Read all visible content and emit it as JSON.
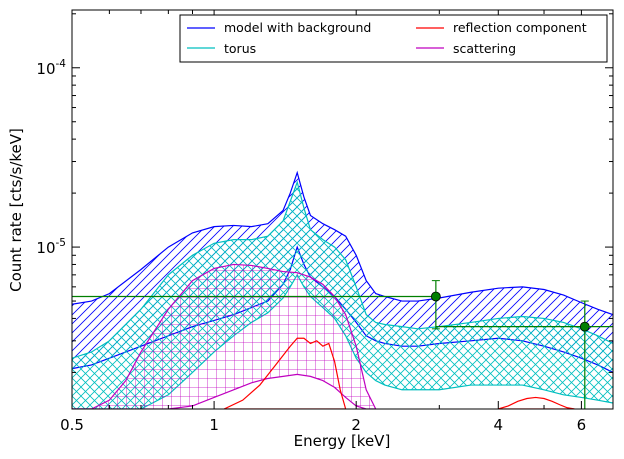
{
  "chart_data": {
    "type": "line",
    "title": "",
    "xlabel": "Energy [keV]",
    "ylabel": "Count rate [cts/s/keV]",
    "xscale": "log",
    "yscale": "log",
    "xlim": [
      0.5,
      7.0
    ],
    "ylim": [
      1.25e-06,
      0.00021
    ],
    "grid": false,
    "legend": {
      "placement": "top-right",
      "columns": 2,
      "entries": [
        {
          "label": "model with background",
          "color": "#0000ff"
        },
        {
          "label": "reflection component",
          "color": "#ff0000"
        },
        {
          "label": "torus",
          "color": "#00bfbf"
        },
        {
          "label": "scattering",
          "color": "#bf00bf"
        }
      ]
    },
    "x_ticks": [
      {
        "value": 0.5,
        "label": "0.5"
      },
      {
        "value": 1,
        "label": "1"
      },
      {
        "value": 2,
        "label": "2"
      },
      {
        "value": 4,
        "label": "4"
      },
      {
        "value": 6,
        "label": "6"
      }
    ],
    "y_ticks": [
      {
        "value": 1e-05,
        "base": "10",
        "exp": "-5"
      },
      {
        "value": 0.0001,
        "base": "10",
        "exp": "-4"
      }
    ],
    "bands": [
      {
        "name": "model with background",
        "color": "#0000ff",
        "hatch": "diagonal",
        "x": [
          0.5,
          0.55,
          0.6,
          0.7,
          0.8,
          0.9,
          1.0,
          1.1,
          1.2,
          1.3,
          1.4,
          1.45,
          1.5,
          1.55,
          1.6,
          1.7,
          1.8,
          1.9,
          2.0,
          2.1,
          2.2,
          2.3,
          2.5,
          2.7,
          3.0,
          3.5,
          4.0,
          4.5,
          5.0,
          5.5,
          6.0,
          6.5,
          7.0
        ],
        "upper": [
          4.8e-06,
          5e-06,
          5.5e-06,
          7.5e-06,
          1e-05,
          1.2e-05,
          1.3e-05,
          1.32e-05,
          1.3e-05,
          1.35e-05,
          1.6e-05,
          2e-05,
          2.6e-05,
          1.9e-05,
          1.5e-05,
          1.35e-05,
          1.25e-05,
          1.15e-05,
          9e-06,
          6.5e-06,
          5.5e-06,
          5.3e-06,
          5e-06,
          5e-06,
          5.2e-06,
          5.6e-06,
          5.9e-06,
          6e-06,
          5.8e-06,
          5.4e-06,
          4.9e-06,
          4.5e-06,
          4.2e-06
        ],
        "lower": [
          2.1e-06,
          2.2e-06,
          2.4e-06,
          2.8e-06,
          3.2e-06,
          3.6e-06,
          3.9e-06,
          4.2e-06,
          4.6e-06,
          5e-06,
          6.2e-06,
          7.5e-06,
          1e-05,
          8e-06,
          6.8e-06,
          6e-06,
          5.3e-06,
          4.5e-06,
          3.8e-06,
          3.2e-06,
          3e-06,
          2.9e-06,
          2.8e-06,
          2.8e-06,
          2.9e-06,
          3e-06,
          3.1e-06,
          3e-06,
          2.8e-06,
          2.6e-06,
          2.4e-06,
          2.2e-06,
          2e-06
        ]
      },
      {
        "name": "torus",
        "color": "#00bfbf",
        "hatch": "cross-diagonal",
        "x": [
          0.5,
          0.55,
          0.6,
          0.7,
          0.8,
          0.9,
          1.0,
          1.1,
          1.2,
          1.3,
          1.4,
          1.45,
          1.5,
          1.55,
          1.6,
          1.7,
          1.8,
          1.9,
          2.0,
          2.1,
          2.2,
          2.3,
          2.5,
          2.7,
          3.0,
          3.5,
          4.0,
          4.5,
          5.0,
          5.5,
          6.0,
          6.5,
          7.0
        ],
        "upper": [
          2.4e-06,
          2.6e-06,
          3e-06,
          4.5e-06,
          7e-06,
          9e-06,
          1.05e-05,
          1.1e-05,
          1.1e-05,
          1.15e-05,
          1.4e-05,
          1.8e-05,
          2.3e-05,
          1.65e-05,
          1.25e-05,
          1.1e-05,
          1e-05,
          8.5e-06,
          6e-06,
          4.2e-06,
          3.8e-06,
          3.7e-06,
          3.6e-06,
          3.5e-06,
          3.6e-06,
          3.8e-06,
          4e-06,
          4.1e-06,
          4e-06,
          3.8e-06,
          3.5e-06,
          3.2e-06,
          2.9e-06
        ],
        "lower": [
          1.25e-06,
          1.25e-06,
          1.25e-06,
          1.25e-06,
          1.5e-06,
          2e-06,
          2.6e-06,
          3.2e-06,
          3.8e-06,
          4.3e-06,
          5.2e-06,
          6e-06,
          7e-06,
          6e-06,
          5.3e-06,
          4.6e-06,
          4e-06,
          3.2e-06,
          2.4e-06,
          2e-06,
          1.8e-06,
          1.7e-06,
          1.6e-06,
          1.6e-06,
          1.6e-06,
          1.7e-06,
          1.7e-06,
          1.7e-06,
          1.6e-06,
          1.5e-06,
          1.45e-06,
          1.4e-06,
          1.35e-06
        ]
      },
      {
        "name": "scattering",
        "color": "#bf00bf",
        "hatch": "grid",
        "x": [
          0.5,
          0.55,
          0.6,
          0.65,
          0.7,
          0.8,
          0.9,
          1.0,
          1.1,
          1.2,
          1.3,
          1.4,
          1.5,
          1.6,
          1.7,
          1.8,
          1.9,
          2.0,
          2.1,
          2.2
        ],
        "upper": [
          1.25e-06,
          1.25e-06,
          1.4e-06,
          1.8e-06,
          2.6e-06,
          4.5e-06,
          6.5e-06,
          7.6e-06,
          8e-06,
          7.9e-06,
          7.6e-06,
          7.3e-06,
          7.2e-06,
          6.8e-06,
          6.2e-06,
          5.3e-06,
          4.2e-06,
          2.8e-06,
          1.6e-06,
          1.25e-06
        ],
        "lower": [
          1.25e-06,
          1.25e-06,
          1.25e-06,
          1.25e-06,
          1.25e-06,
          1.25e-06,
          1.3e-06,
          1.45e-06,
          1.6e-06,
          1.75e-06,
          1.85e-06,
          1.9e-06,
          1.95e-06,
          1.9e-06,
          1.8e-06,
          1.65e-06,
          1.45e-06,
          1.3e-06,
          1.25e-06,
          1.25e-06
        ]
      },
      {
        "name": "reflection component",
        "color": "#ff0000",
        "hatch": "none",
        "segments": [
          {
            "x": [
              1.05,
              1.15,
              1.25,
              1.35,
              1.45,
              1.5,
              1.55,
              1.6,
              1.65,
              1.7,
              1.75,
              1.8,
              1.85,
              1.9
            ],
            "upper": [
              1.25e-06,
              1.4e-06,
              1.7e-06,
              2.2e-06,
              2.8e-06,
              3.1e-06,
              3.1e-06,
              2.9e-06,
              3e-06,
              2.8e-06,
              2.9e-06,
              2.3e-06,
              1.6e-06,
              1.25e-06
            ],
            "lower": [
              1.25e-06,
              1.25e-06,
              1.25e-06,
              1.25e-06,
              1.25e-06,
              1.25e-06,
              1.25e-06,
              1.25e-06,
              1.25e-06,
              1.25e-06,
              1.25e-06,
              1.25e-06,
              1.25e-06,
              1.25e-06
            ]
          },
          {
            "x": [
              4.0,
              4.2,
              4.4,
              4.6,
              4.8,
              5.0,
              5.2,
              5.4,
              5.6,
              5.8
            ],
            "upper": [
              1.25e-06,
              1.3e-06,
              1.38e-06,
              1.43e-06,
              1.45e-06,
              1.43e-06,
              1.38e-06,
              1.32e-06,
              1.27e-06,
              1.25e-06
            ],
            "lower": [
              1.25e-06,
              1.25e-06,
              1.25e-06,
              1.25e-06,
              1.25e-06,
              1.25e-06,
              1.25e-06,
              1.25e-06,
              1.25e-06,
              1.25e-06
            ]
          }
        ]
      }
    ],
    "data_points": {
      "color": "#007f00",
      "points": [
        {
          "x_lo": 0.5,
          "x_hi": 2.95,
          "x": 2.95,
          "y": 5.3e-06,
          "y_lo": 3.5e-06,
          "y_hi": 6.5e-06
        },
        {
          "x_lo": 2.95,
          "x_hi": 6.1,
          "x": 6.1,
          "y": 3.6e-06,
          "y_lo": 1.25e-06,
          "y_hi": 5e-06
        },
        {
          "x_lo": 6.1,
          "x_hi": 7.0,
          "x": null,
          "y": 3.6e-06,
          "y_lo": null,
          "y_hi": null
        }
      ]
    }
  }
}
